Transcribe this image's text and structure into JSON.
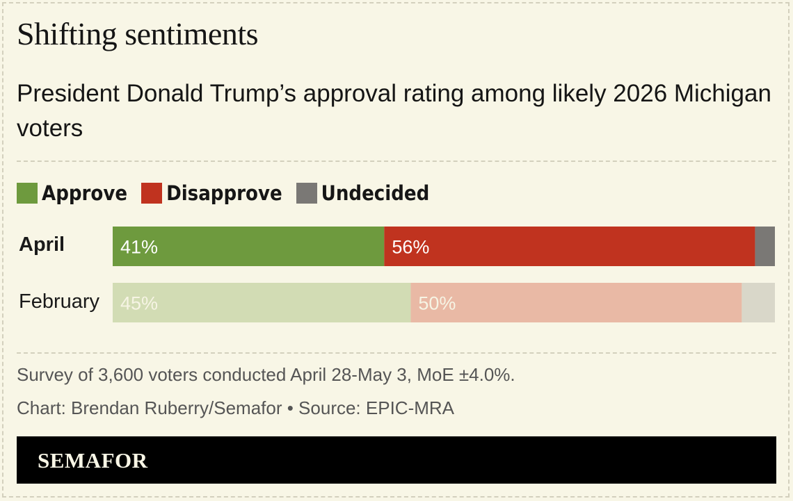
{
  "header": {
    "title": "Shifting sentiments",
    "subtitle": "President Donald Trump’s approval rating among likely 2026 Michigan voters"
  },
  "colors": {
    "approve": "#6e9a3e",
    "disapprove": "#c0331f",
    "undecided": "#7a7875",
    "approve_faded": "#d2dcb4",
    "disapprove_faded": "#e9b9a5",
    "undecided_faded": "#d9d7c9",
    "background": "#f8f6e6"
  },
  "chart_data": {
    "type": "bar",
    "orientation": "horizontal",
    "stacked": true,
    "categories": [
      "April",
      "February"
    ],
    "series": [
      {
        "name": "Approve",
        "values": [
          41,
          45
        ],
        "labels": [
          "41%",
          "45%"
        ]
      },
      {
        "name": "Disapprove",
        "values": [
          56,
          50
        ],
        "labels": [
          "56%",
          "50%"
        ]
      },
      {
        "name": "Undecided",
        "values": [
          3,
          5
        ],
        "labels": [
          "",
          ""
        ]
      }
    ],
    "xlim": [
      0,
      100
    ],
    "legend": [
      "Approve",
      "Disapprove",
      "Undecided"
    ],
    "legend_position": "top-left",
    "title": "Shifting sentiments",
    "subtitle": "President Donald Trump’s approval rating among likely 2026 Michigan voters",
    "xlabel": "",
    "ylabel": "",
    "grid": false
  },
  "footer": {
    "note": "Survey of 3,600 voters conducted April 28-May 3, MoE ±4.0%.",
    "credit": "Chart: Brendan Ruberry/Semafor • Source: EPIC-MRA",
    "brand": "SEMAFOR"
  }
}
